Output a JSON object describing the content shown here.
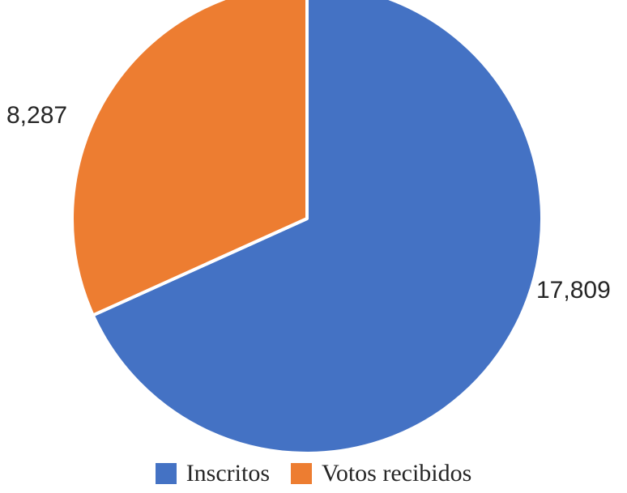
{
  "chart_data": {
    "type": "pie",
    "categories": [
      "Inscritos",
      "Votos recibidos"
    ],
    "values": [
      17809,
      8287
    ],
    "data_labels": [
      "17,809",
      "8,287"
    ],
    "colors": [
      "#4472C4",
      "#ED7D31"
    ],
    "start_angle_deg": 0,
    "direction": "clockwise",
    "title": "",
    "legend_position": "bottom"
  }
}
